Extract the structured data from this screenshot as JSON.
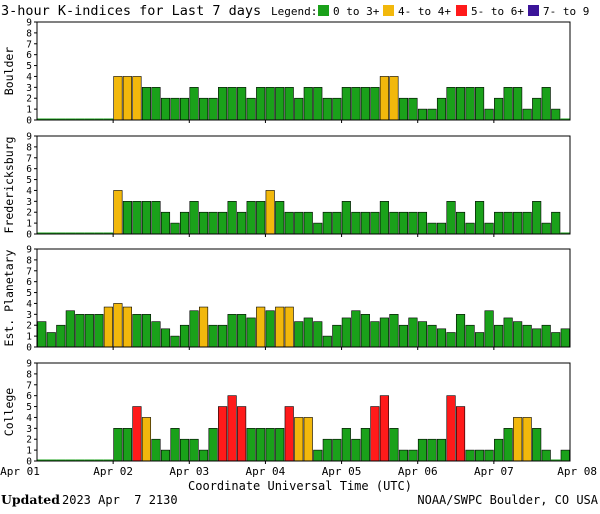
{
  "chart_data": {
    "type": "bar",
    "title": "3-hour K-indices for Last 7 days",
    "legend": {
      "label": "Legend:",
      "placement": "top-right",
      "entries": [
        {
          "label": "0 to 3+",
          "color": "#1aa11a"
        },
        {
          "label": "4- to 4+",
          "color": "#f2b80c"
        },
        {
          "label": "5- to 6+",
          "color": "#ff1a1a"
        },
        {
          "label": "7- to 9",
          "color": "#3b1499"
        }
      ]
    },
    "xlabel": "Coordinate Universal Time (UTC)",
    "x_ticks": [
      "Apr 01",
      "Apr 02",
      "Apr 03",
      "Apr 04",
      "Apr 05",
      "Apr 06",
      "Apr 07",
      "Apr 08"
    ],
    "ylim": [
      0,
      9
    ],
    "y_ticks": [
      "0",
      "1",
      "2",
      "3",
      "4",
      "5",
      "6",
      "7",
      "8",
      "9"
    ],
    "panels": [
      {
        "name": "Boulder",
        "values": [
          0,
          0,
          0,
          0,
          0,
          0,
          0,
          0,
          4,
          4,
          4,
          3,
          3,
          2,
          2,
          2,
          3,
          2,
          2,
          3,
          3,
          3,
          2,
          3,
          3,
          3,
          3,
          2,
          3,
          3,
          2,
          2,
          3,
          3,
          3,
          3,
          4,
          4,
          2,
          2,
          1,
          1,
          2,
          3,
          3,
          3,
          3,
          1,
          2,
          3,
          3,
          1,
          2,
          3,
          1,
          0
        ]
      },
      {
        "name": "Fredericksburg",
        "values": [
          0,
          0,
          0,
          0,
          0,
          0,
          0,
          0,
          4,
          3,
          3,
          3,
          3,
          2,
          1,
          2,
          3,
          2,
          2,
          2,
          3,
          2,
          3,
          3,
          4,
          3,
          2,
          2,
          2,
          1,
          2,
          2,
          3,
          2,
          2,
          2,
          3,
          2,
          2,
          2,
          2,
          1,
          1,
          3,
          2,
          1,
          3,
          1,
          2,
          2,
          2,
          2,
          3,
          1,
          2,
          0
        ]
      },
      {
        "name": "Est. Planetary",
        "values": [
          2.33,
          1.33,
          2,
          3.33,
          3,
          3,
          3,
          3.67,
          4,
          3.67,
          3,
          3,
          2.33,
          1.67,
          1,
          2,
          3.33,
          3.67,
          2,
          2,
          3,
          3,
          2.67,
          3.67,
          3.33,
          3.67,
          3.67,
          2.33,
          2.67,
          2.33,
          1,
          2,
          2.67,
          3.33,
          3,
          2.33,
          2.67,
          3,
          2,
          2.67,
          2.33,
          2,
          1.67,
          1.33,
          3,
          2,
          1.33,
          3.33,
          2,
          2.67,
          2.33,
          2,
          1.67,
          2,
          1.33,
          1.67
        ]
      },
      {
        "name": "College",
        "values": [
          0,
          0,
          0,
          0,
          0,
          0,
          0,
          0,
          3,
          3,
          5,
          4,
          2,
          1,
          3,
          2,
          2,
          1,
          3,
          5,
          6,
          5,
          3,
          3,
          3,
          3,
          5,
          4,
          4,
          1,
          2,
          2,
          3,
          2,
          3,
          5,
          6,
          3,
          1,
          1,
          2,
          2,
          2,
          6,
          5,
          1,
          1,
          1,
          2,
          3,
          4,
          4,
          3,
          1,
          0,
          1
        ]
      }
    ]
  },
  "footer": {
    "updated_label": "Updated",
    "updated_value": "2023 Apr  7 2130",
    "source": "NOAA/SWPC Boulder, CO USA"
  }
}
